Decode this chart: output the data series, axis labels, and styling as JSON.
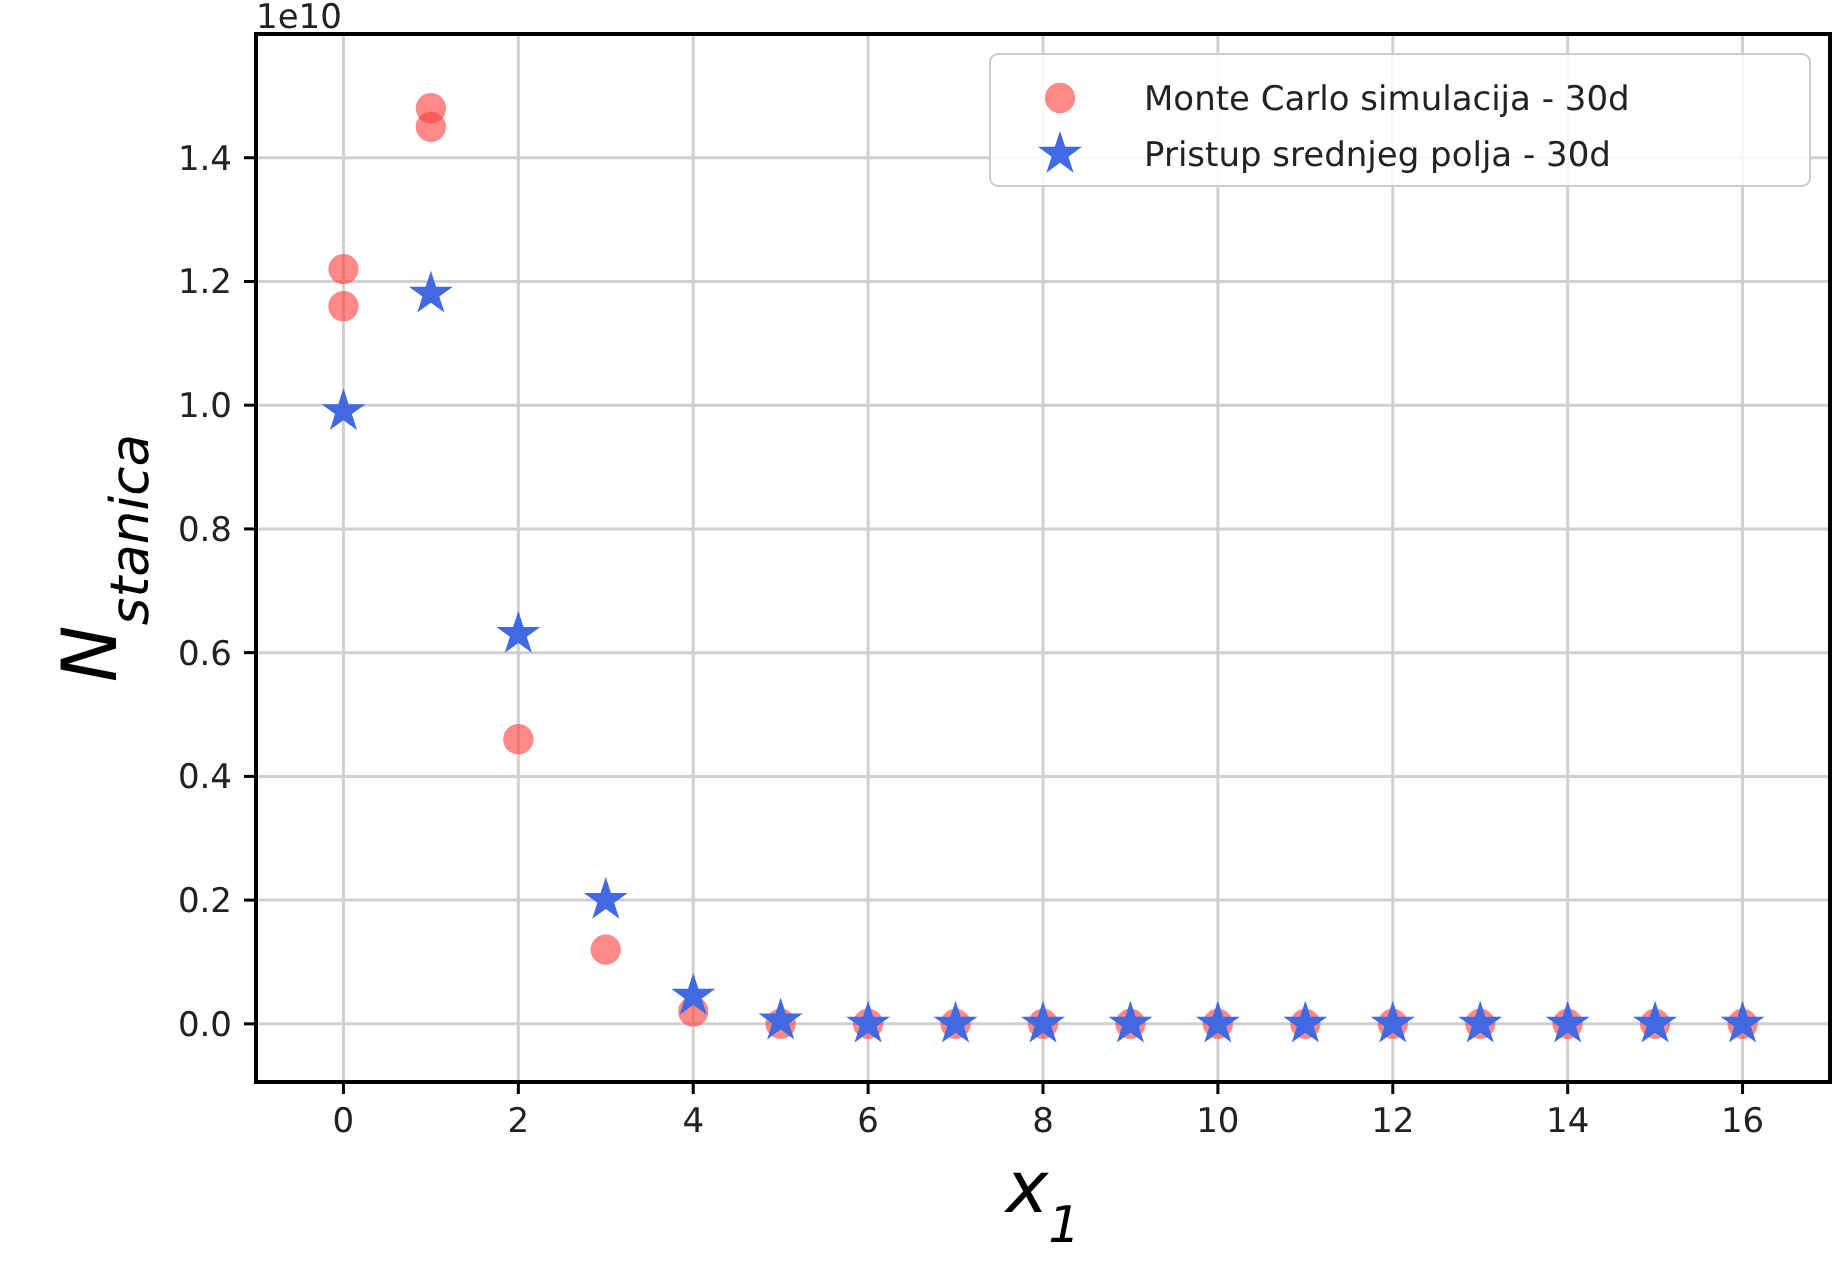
{
  "chart_data": {
    "type": "scatter",
    "xlabel": "x$_{1}$",
    "ylabel": "N$_{stanica}$",
    "annotations": [
      "1e10"
    ],
    "xlim": [
      -1,
      17
    ],
    "ylim": [
      -0.094,
      1.6
    ],
    "xticks": [
      0,
      2,
      4,
      6,
      8,
      10,
      12,
      14,
      16
    ],
    "yticks": [
      {
        "value": 0,
        "label": "0.0"
      },
      0.2,
      0.4,
      0.6,
      0.8,
      {
        "value": 1,
        "label": "1.0"
      },
      1.2,
      1.4
    ],
    "grid": true,
    "legend": "top right",
    "series": [
      {
        "name": "Monte Carlo simulacija - 30d",
        "color": "#ff3a3a",
        "marker": "circle",
        "x": [
          0,
          0,
          1,
          1,
          2,
          3,
          4,
          5,
          6,
          7,
          8,
          9,
          10,
          11,
          12,
          13,
          14,
          15,
          16
        ],
        "values": [
          1.22,
          1.16,
          1.48,
          1.45,
          0.46,
          0.12,
          0.02,
          0,
          0,
          0,
          0,
          0,
          0,
          0,
          0,
          0,
          0,
          0,
          0
        ]
      },
      {
        "name": "Pristup srednjeg polja - 30d",
        "color": "#4169e1",
        "marker": "star",
        "x": [
          0,
          1,
          2,
          3,
          4,
          5,
          6,
          7,
          8,
          9,
          10,
          11,
          12,
          13,
          14,
          15,
          16
        ],
        "values": [
          0.99,
          1.18,
          0.63,
          0.2,
          0.045,
          0.005,
          0,
          0,
          0,
          0,
          0,
          0,
          0,
          0,
          0,
          0,
          0
        ]
      }
    ]
  }
}
